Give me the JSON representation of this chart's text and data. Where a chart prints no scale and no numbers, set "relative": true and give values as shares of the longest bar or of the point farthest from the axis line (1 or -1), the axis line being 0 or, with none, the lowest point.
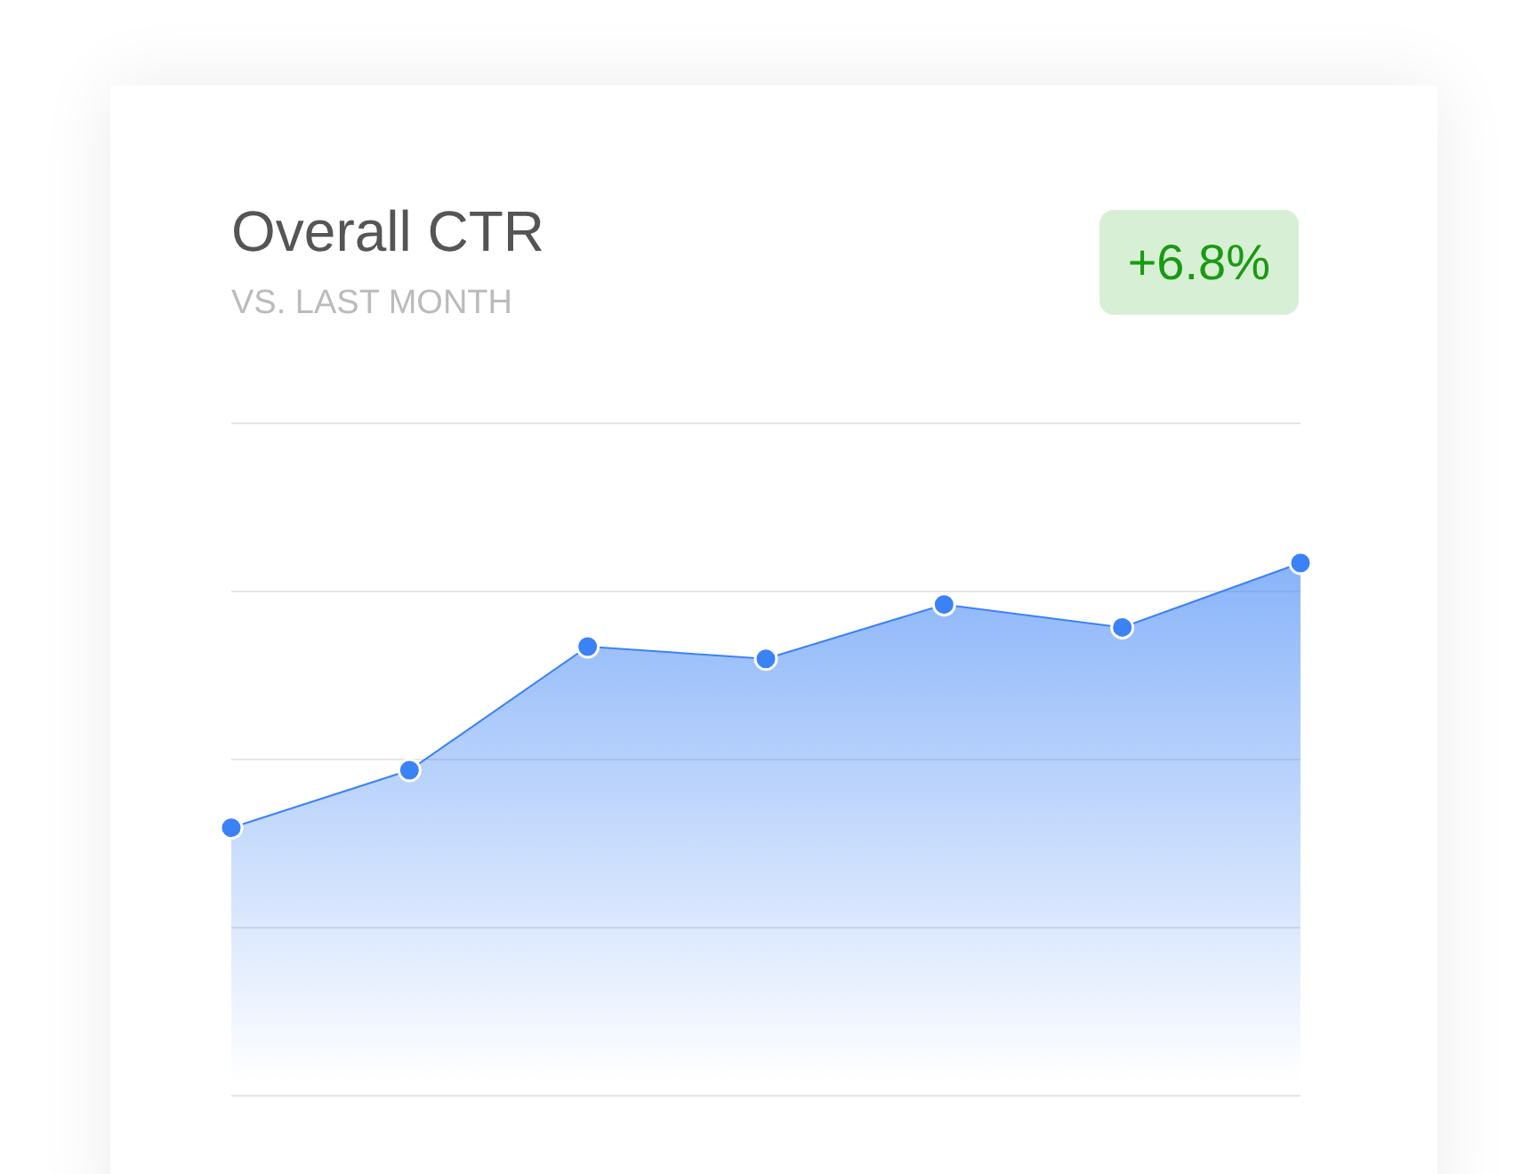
{
  "chart_data": {
    "type": "area",
    "title": "Overall CTR",
    "subtitle": "VS. LAST MONTH",
    "annotations": [
      "+6.8%"
    ],
    "relative": true,
    "grid": "y",
    "legend": false,
    "marker": "circle",
    "categories": [
      null,
      null,
      null,
      null,
      null,
      null,
      null
    ],
    "series": [
      {
        "color": "#3b82f6",
        "values": [
          0.503,
          0.611,
          0.843,
          0.82,
          0.922,
          0.879,
          1
        ]
      }
    ]
  }
}
